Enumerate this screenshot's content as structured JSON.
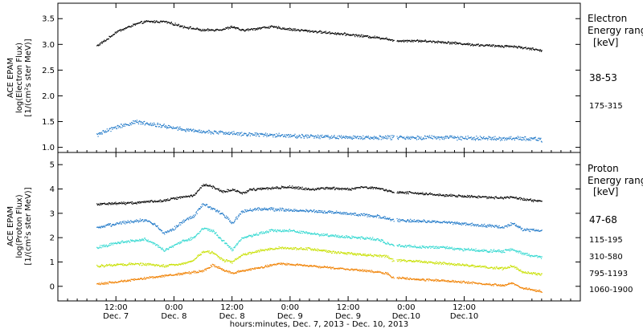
{
  "chart_data": [
    {
      "type": "scatter",
      "ylabel": "ACE EPAM",
      "ylabel_sub": "log(Electron Flux)",
      "yunits": "[1/(cm²s ster MeV)]",
      "ylim": [
        0.9,
        3.8
      ],
      "yticks": [
        1.0,
        1.5,
        2.0,
        2.5,
        3.0,
        3.5
      ],
      "ytick_labels": [
        "1.0",
        "1.5",
        "2.0",
        "2.5",
        "3.0",
        "3.5"
      ],
      "legend_title": "Electron",
      "legend_sub": "Energy ranges",
      "legend_units": "[keV]",
      "series": [
        {
          "name": "38-53",
          "color": "#000000",
          "noise": 0.018,
          "points": [
            [
              0,
              2.98
            ],
            [
              2,
              3.1
            ],
            [
              4,
              3.25
            ],
            [
              8,
              3.4
            ],
            [
              10,
              3.45
            ],
            [
              14,
              3.45
            ],
            [
              18,
              3.35
            ],
            [
              22,
              3.28
            ],
            [
              26,
              3.3
            ],
            [
              28,
              3.35
            ],
            [
              30,
              3.28
            ],
            [
              32,
              3.3
            ],
            [
              34,
              3.33
            ],
            [
              36,
              3.35
            ],
            [
              40,
              3.3
            ],
            [
              46,
              3.25
            ],
            [
              52,
              3.2
            ],
            [
              60,
              3.12
            ],
            [
              61,
              3.08
            ],
            [
              66,
              3.08
            ],
            [
              72,
              3.05
            ],
            [
              78,
              3.0
            ],
            [
              82,
              2.98
            ],
            [
              86,
              2.97
            ],
            [
              90,
              2.92
            ],
            [
              92,
              2.88
            ]
          ],
          "gaps": [
            [
              61.4,
              62.0
            ]
          ]
        },
        {
          "name": "175-315",
          "color": "#1f78c8",
          "noise": 0.03,
          "points": [
            [
              0,
              1.25
            ],
            [
              4,
              1.4
            ],
            [
              8,
              1.5
            ],
            [
              10,
              1.48
            ],
            [
              14,
              1.42
            ],
            [
              18,
              1.35
            ],
            [
              24,
              1.3
            ],
            [
              30,
              1.27
            ],
            [
              36,
              1.25
            ],
            [
              44,
              1.22
            ],
            [
              52,
              1.2
            ],
            [
              60,
              1.2
            ],
            [
              61,
              1.2
            ],
            [
              70,
              1.2
            ],
            [
              80,
              1.18
            ],
            [
              90,
              1.18
            ],
            [
              92,
              1.15
            ]
          ],
          "gaps": [
            [
              61.4,
              62.0
            ]
          ]
        }
      ]
    },
    {
      "type": "scatter",
      "ylabel": "ACE EPAM",
      "ylabel_sub": "log(Proton Flux)",
      "yunits": "[1/(cm²s ster MeV)]",
      "ylim": [
        -0.6,
        5.5
      ],
      "yticks": [
        0,
        1,
        2,
        3,
        4,
        5
      ],
      "ytick_labels": [
        "0",
        "1",
        "2",
        "3",
        "4",
        "5"
      ],
      "legend_title": "Proton",
      "legend_sub": "Energy ranges",
      "legend_units": "[keV]",
      "series": [
        {
          "name": "47-68",
          "color": "#000000",
          "noise": 0.04,
          "points": [
            [
              0,
              3.4
            ],
            [
              8,
              3.45
            ],
            [
              14,
              3.55
            ],
            [
              18,
              3.7
            ],
            [
              20,
              3.75
            ],
            [
              22,
              4.2
            ],
            [
              24,
              4.1
            ],
            [
              26,
              3.9
            ],
            [
              28,
              4.0
            ],
            [
              30,
              3.85
            ],
            [
              32,
              4.0
            ],
            [
              36,
              4.05
            ],
            [
              40,
              4.1
            ],
            [
              44,
              4.0
            ],
            [
              48,
              4.05
            ],
            [
              52,
              4.0
            ],
            [
              55,
              4.1
            ],
            [
              58,
              4.05
            ],
            [
              60,
              3.95
            ],
            [
              61,
              3.9
            ],
            [
              66,
              3.85
            ],
            [
              72,
              3.75
            ],
            [
              78,
              3.7
            ],
            [
              84,
              3.65
            ],
            [
              86,
              3.7
            ],
            [
              88,
              3.6
            ],
            [
              92,
              3.5
            ]
          ],
          "gaps": [
            [
              61.4,
              62.0
            ]
          ]
        },
        {
          "name": "115-195",
          "color": "#1f78c8",
          "noise": 0.05,
          "points": [
            [
              0,
              2.4
            ],
            [
              4,
              2.6
            ],
            [
              8,
              2.7
            ],
            [
              10,
              2.75
            ],
            [
              12,
              2.55
            ],
            [
              14,
              2.2
            ],
            [
              16,
              2.4
            ],
            [
              18,
              2.7
            ],
            [
              20,
              2.9
            ],
            [
              22,
              3.4
            ],
            [
              24,
              3.2
            ],
            [
              26,
              3.0
            ],
            [
              28,
              2.6
            ],
            [
              30,
              3.1
            ],
            [
              34,
              3.2
            ],
            [
              40,
              3.15
            ],
            [
              46,
              3.1
            ],
            [
              52,
              3.0
            ],
            [
              58,
              2.9
            ],
            [
              61,
              2.75
            ],
            [
              66,
              2.7
            ],
            [
              72,
              2.65
            ],
            [
              78,
              2.55
            ],
            [
              84,
              2.45
            ],
            [
              86,
              2.6
            ],
            [
              88,
              2.35
            ],
            [
              92,
              2.3
            ]
          ],
          "gaps": [
            [
              61.4,
              62.0
            ]
          ]
        },
        {
          "name": "310-580",
          "color": "#30d8d0",
          "noise": 0.045,
          "points": [
            [
              0,
              1.6
            ],
            [
              4,
              1.8
            ],
            [
              8,
              1.9
            ],
            [
              10,
              1.95
            ],
            [
              12,
              1.75
            ],
            [
              14,
              1.5
            ],
            [
              16,
              1.7
            ],
            [
              18,
              1.9
            ],
            [
              20,
              2.0
            ],
            [
              22,
              2.4
            ],
            [
              24,
              2.3
            ],
            [
              26,
              1.9
            ],
            [
              28,
              1.5
            ],
            [
              30,
              2.0
            ],
            [
              36,
              2.3
            ],
            [
              40,
              2.3
            ],
            [
              46,
              2.15
            ],
            [
              52,
              2.05
            ],
            [
              58,
              1.95
            ],
            [
              61,
              1.7
            ],
            [
              66,
              1.65
            ],
            [
              72,
              1.6
            ],
            [
              78,
              1.5
            ],
            [
              84,
              1.45
            ],
            [
              86,
              1.55
            ],
            [
              88,
              1.35
            ],
            [
              92,
              1.2
            ]
          ],
          "gaps": [
            [
              61.4,
              62.0
            ]
          ]
        },
        {
          "name": "795-1193",
          "color": "#c8e000",
          "noise": 0.04,
          "points": [
            [
              0,
              0.85
            ],
            [
              4,
              0.9
            ],
            [
              8,
              0.95
            ],
            [
              12,
              0.9
            ],
            [
              14,
              0.85
            ],
            [
              18,
              0.95
            ],
            [
              20,
              1.1
            ],
            [
              22,
              1.45
            ],
            [
              24,
              1.4
            ],
            [
              26,
              1.1
            ],
            [
              28,
              1.0
            ],
            [
              30,
              1.3
            ],
            [
              34,
              1.5
            ],
            [
              38,
              1.6
            ],
            [
              44,
              1.55
            ],
            [
              50,
              1.4
            ],
            [
              56,
              1.3
            ],
            [
              60,
              1.25
            ],
            [
              61,
              1.1
            ],
            [
              66,
              1.05
            ],
            [
              72,
              0.95
            ],
            [
              78,
              0.85
            ],
            [
              84,
              0.75
            ],
            [
              86,
              0.85
            ],
            [
              88,
              0.6
            ],
            [
              92,
              0.5
            ]
          ],
          "gaps": [
            [
              61.4,
              62.0
            ]
          ]
        },
        {
          "name": "1060-1900",
          "color": "#f08000",
          "noise": 0.035,
          "points": [
            [
              0,
              0.1
            ],
            [
              4,
              0.2
            ],
            [
              8,
              0.3
            ],
            [
              12,
              0.4
            ],
            [
              16,
              0.5
            ],
            [
              20,
              0.6
            ],
            [
              22,
              0.65
            ],
            [
              24,
              0.9
            ],
            [
              26,
              0.7
            ],
            [
              28,
              0.55
            ],
            [
              30,
              0.65
            ],
            [
              34,
              0.8
            ],
            [
              38,
              0.95
            ],
            [
              44,
              0.85
            ],
            [
              50,
              0.75
            ],
            [
              56,
              0.65
            ],
            [
              60,
              0.55
            ],
            [
              61,
              0.4
            ],
            [
              66,
              0.3
            ],
            [
              72,
              0.25
            ],
            [
              78,
              0.15
            ],
            [
              84,
              0.05
            ],
            [
              86,
              0.15
            ],
            [
              88,
              -0.05
            ],
            [
              92,
              -0.2
            ]
          ],
          "gaps": [
            [
              61.4,
              62.0
            ]
          ]
        }
      ]
    }
  ],
  "xaxis": {
    "xlim": [
      -8,
      100
    ],
    "ticks": [
      {
        "x": 4,
        "time": "12:00",
        "day": "Dec. 7"
      },
      {
        "x": 16,
        "time": "0:00",
        "day": "Dec. 8"
      },
      {
        "x": 28,
        "time": "12:00",
        "day": "Dec. 8"
      },
      {
        "x": 40,
        "time": "0:00",
        "day": "Dec. 9"
      },
      {
        "x": 52,
        "time": "12:00",
        "day": "Dec. 9"
      },
      {
        "x": 64,
        "time": "0:00",
        "day": "Dec.10"
      },
      {
        "x": 76,
        "time": "12:00",
        "day": "Dec.10"
      }
    ],
    "label": "hours:minutes, Dec.  7, 2013 - Dec. 10, 2013"
  }
}
